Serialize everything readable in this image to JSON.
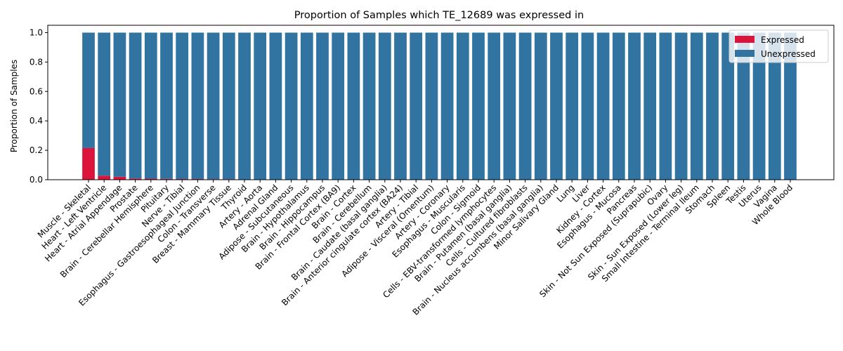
{
  "chart_data": {
    "type": "bar",
    "stacked": true,
    "title": "Proportion of Samples which TE_12689 was expressed in",
    "xlabel": "",
    "ylabel": "Proportion of Samples",
    "ylim": [
      0,
      1.05
    ],
    "yticks": [
      "0.0",
      "0.2",
      "0.4",
      "0.6",
      "0.8",
      "1.0"
    ],
    "grid": false,
    "legend_position": "top-right",
    "categories": [
      "Muscle - Skeletal",
      "Heart - Left Ventricle",
      "Heart - Atrial Appendage",
      "Prostate",
      "Brain - Cerebellar Hemisphere",
      "Pituitary",
      "Nerve - Tibial",
      "Esophagus - Gastroesophageal Junction",
      "Colon - Transverse",
      "Breast - Mammary Tissue",
      "Thyroid",
      "Artery - Aorta",
      "Adrenal Gland",
      "Adipose - Subcutaneous",
      "Brain - Hypothalamus",
      "Brain - Hippocampus",
      "Brain - Frontal Cortex (BA9)",
      "Brain - Cortex",
      "Brain - Cerebellum",
      "Brain - Caudate (basal ganglia)",
      "Brain - Anterior cingulate cortex (BA24)",
      "Artery - Tibial",
      "Adipose - Visceral (Omentum)",
      "Artery - Coronary",
      "Esophagus - Muscularis",
      "Colon - Sigmoid",
      "Cells - EBV-transformed lymphocytes",
      "Brain - Putamen (basal ganglia)",
      "Cells - Cultured fibroblasts",
      "Brain - Nucleus accumbens (basal ganglia)",
      "Minor Salivary Gland",
      "Lung",
      "Liver",
      "Kidney - Cortex",
      "Esophagus - Mucosa",
      "Pancreas",
      "Skin - Not Sun Exposed (Suprapubic)",
      "Ovary",
      "Skin - Sun Exposed (Lower leg)",
      "Small Intestine - Terminal Ileum",
      "Stomach",
      "Spleen",
      "Testis",
      "Uterus",
      "Vagina",
      "Whole Blood"
    ],
    "series": [
      {
        "name": "Expressed",
        "color": "#dc143c",
        "values": [
          0.215,
          0.027,
          0.02,
          0.008,
          0.007,
          0.006,
          0.005,
          0.005,
          0.004,
          0.004,
          0,
          0,
          0,
          0,
          0,
          0,
          0,
          0,
          0,
          0,
          0,
          0,
          0,
          0,
          0,
          0,
          0,
          0,
          0,
          0,
          0,
          0,
          0,
          0,
          0,
          0,
          0,
          0,
          0,
          0,
          0,
          0,
          0,
          0,
          0,
          0
        ]
      },
      {
        "name": "Unexpressed",
        "color": "#3274a1",
        "values": [
          0.785,
          0.973,
          0.98,
          0.992,
          0.993,
          0.994,
          0.995,
          0.995,
          0.996,
          0.996,
          1,
          1,
          1,
          1,
          1,
          1,
          1,
          1,
          1,
          1,
          1,
          1,
          1,
          1,
          1,
          1,
          1,
          1,
          1,
          1,
          1,
          1,
          1,
          1,
          1,
          1,
          1,
          1,
          1,
          1,
          1,
          1,
          1,
          1,
          1,
          1
        ]
      }
    ]
  }
}
